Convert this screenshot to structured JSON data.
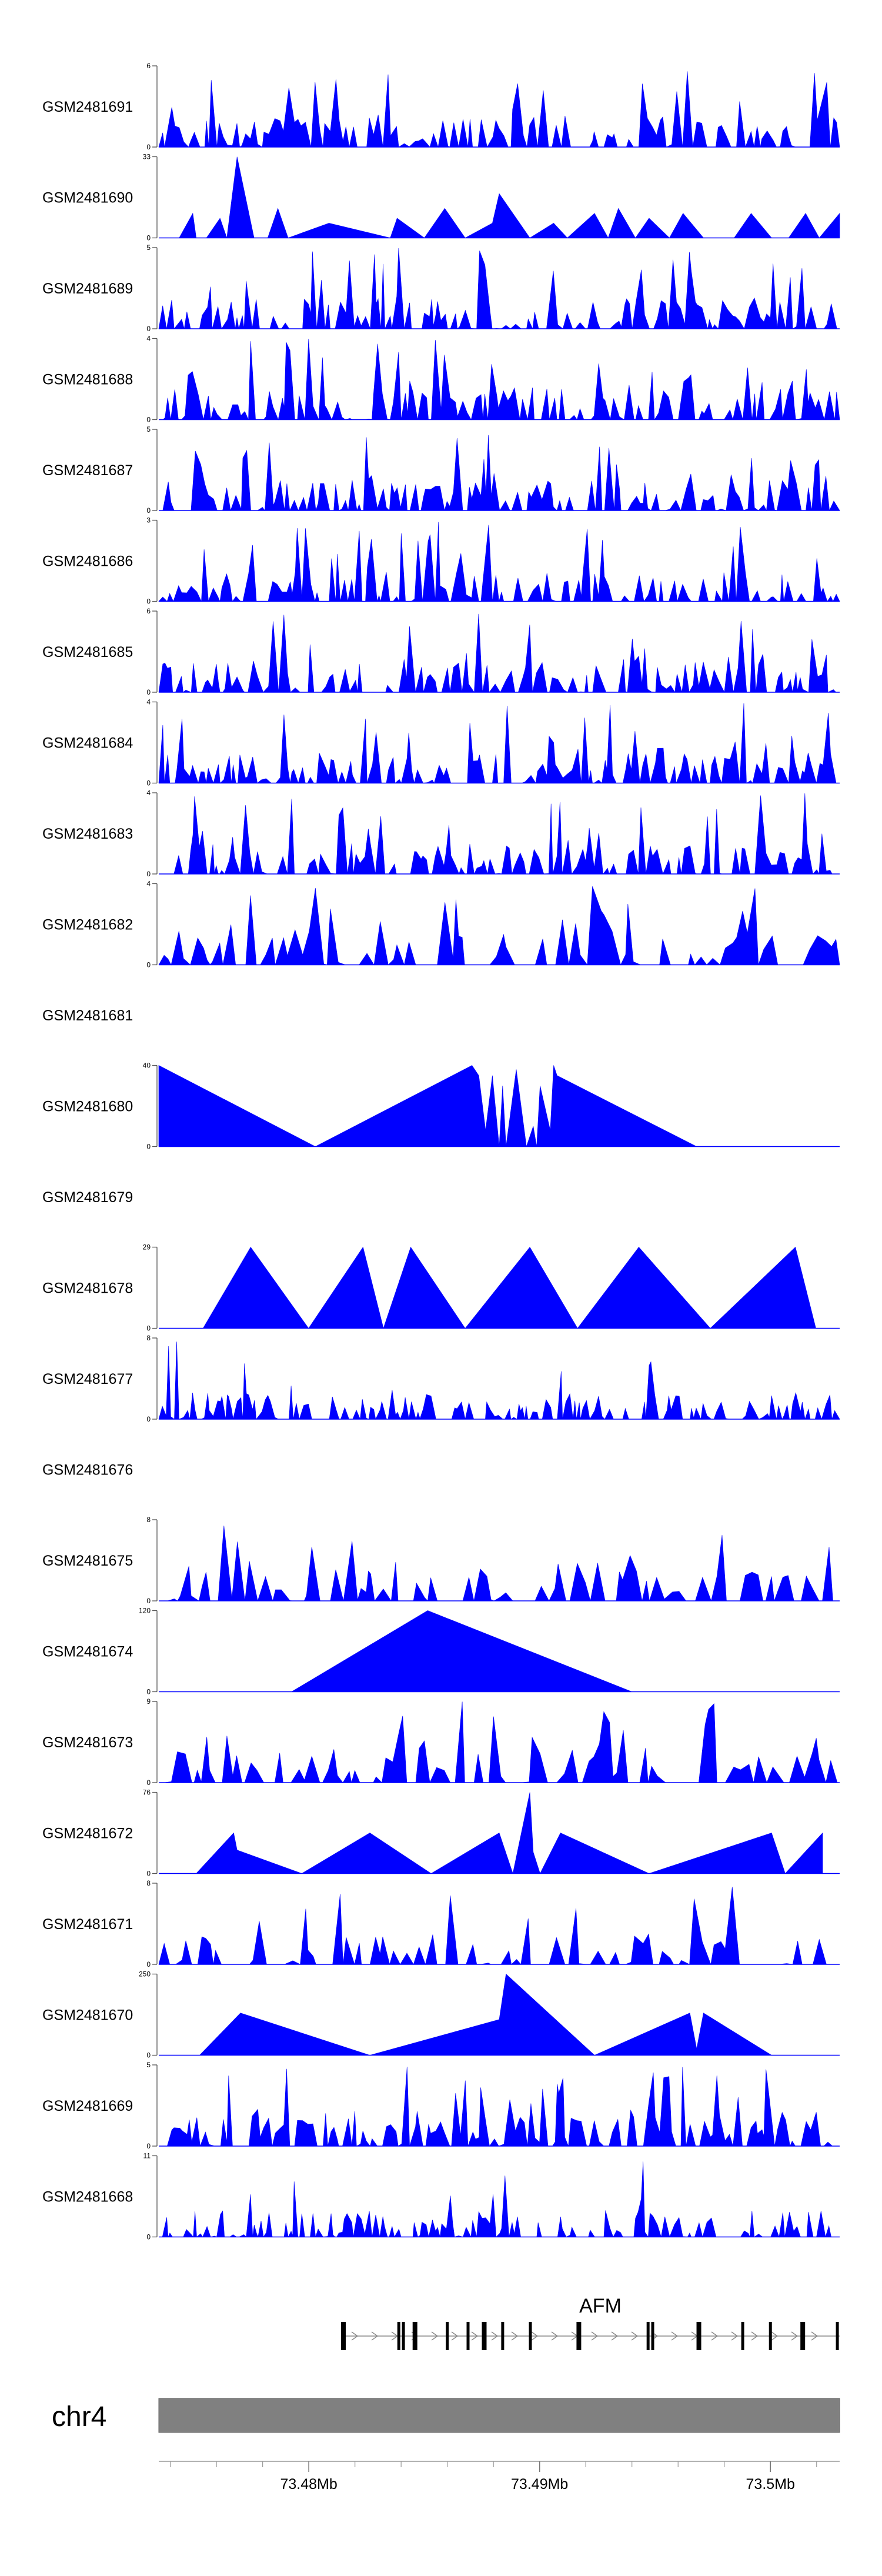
{
  "chart_data": {
    "type": "area",
    "title": "",
    "xlabel": "",
    "ylabel": "",
    "fill_color": "#0000ff",
    "chromosome": "chr4",
    "chromosome_color": "#808080",
    "x_range_mb": [
      73.4735,
      73.503
    ],
    "x_ticks": [
      {
        "value": 73.48,
        "label": "73.48Mb"
      },
      {
        "value": 73.49,
        "label": "73.49Mb"
      },
      {
        "value": 73.5,
        "label": "73.5Mb"
      }
    ],
    "gene": {
      "name": "AFM",
      "start_mb": 73.4815,
      "end_mb": 73.503,
      "exons_mb": [
        73.4815,
        73.4839,
        73.4841,
        73.4846,
        73.486,
        73.4869,
        73.4876,
        73.4884,
        73.4896,
        73.4917,
        73.4947,
        73.4949,
        73.4969,
        73.4988,
        73.5,
        73.5014,
        73.5029
      ]
    },
    "tracks": [
      {
        "name": "GSM2481691",
        "ymax": 6,
        "has_data": true,
        "seed": 11,
        "style": "dense"
      },
      {
        "name": "GSM2481690",
        "ymax": 33,
        "has_data": true,
        "style": "points",
        "x": [
          0.0,
          0.03,
          0.05,
          0.055,
          0.06,
          0.07,
          0.09,
          0.1,
          0.115,
          0.14,
          0.16,
          0.175,
          0.19,
          0.25,
          0.34,
          0.35,
          0.39,
          0.42,
          0.45,
          0.49,
          0.5,
          0.545,
          0.58,
          0.6,
          0.64,
          0.66,
          0.675,
          0.7,
          0.72,
          0.75,
          0.77,
          0.8,
          0.845,
          0.87,
          0.9,
          0.925,
          0.95,
          0.97,
          1.0
        ],
        "y": [
          0,
          0,
          10,
          0,
          0,
          0,
          8,
          0,
          33,
          0,
          0,
          12,
          0,
          6,
          0,
          8,
          0,
          12,
          0,
          6,
          18,
          0,
          6,
          0,
          10,
          0,
          12,
          0,
          8,
          0,
          10,
          0,
          0,
          10,
          0,
          0,
          10,
          0,
          10
        ]
      },
      {
        "name": "GSM2481689",
        "ymax": 5,
        "has_data": true,
        "seed": 23,
        "style": "dense"
      },
      {
        "name": "GSM2481688",
        "ymax": 4,
        "has_data": true,
        "seed": 37,
        "style": "dense"
      },
      {
        "name": "GSM2481687",
        "ymax": 5,
        "has_data": true,
        "seed": 41,
        "style": "dense"
      },
      {
        "name": "GSM2481686",
        "ymax": 3,
        "has_data": true,
        "seed": 53,
        "style": "dense"
      },
      {
        "name": "GSM2481685",
        "ymax": 6,
        "has_data": true,
        "seed": 67,
        "style": "dense"
      },
      {
        "name": "GSM2481684",
        "ymax": 4,
        "has_data": true,
        "seed": 79,
        "style": "dense"
      },
      {
        "name": "GSM2481683",
        "ymax": 4,
        "has_data": true,
        "seed": 83,
        "style": "dense"
      },
      {
        "name": "GSM2481682",
        "ymax": 4,
        "has_data": true,
        "seed": 97,
        "style": "medium"
      },
      {
        "name": "GSM2481681",
        "ymax": null,
        "has_data": false
      },
      {
        "name": "GSM2481680",
        "ymax": 40,
        "has_data": true,
        "style": "points",
        "x": [
          0.0,
          0.23,
          0.46,
          0.47,
          0.48,
          0.49,
          0.5,
          0.505,
          0.51,
          0.525,
          0.54,
          0.55,
          0.555,
          0.56,
          0.575,
          0.58,
          0.585,
          0.79
        ],
        "y": [
          40,
          0,
          40,
          35,
          8,
          35,
          0,
          30,
          0,
          38,
          0,
          10,
          0,
          30,
          8,
          40,
          35,
          0
        ]
      },
      {
        "name": "GSM2481679",
        "ymax": null,
        "has_data": false
      },
      {
        "name": "GSM2481678",
        "ymax": 29,
        "has_data": true,
        "style": "points",
        "x": [
          0.065,
          0.135,
          0.22,
          0.3,
          0.33,
          0.37,
          0.45,
          0.545,
          0.615,
          0.705,
          0.81,
          0.935,
          0.965
        ],
        "y": [
          0,
          29,
          0,
          29,
          0,
          29,
          0,
          29,
          0,
          29,
          0,
          29,
          0
        ]
      },
      {
        "name": "GSM2481677",
        "ymax": 8,
        "has_data": true,
        "seed": 109,
        "style": "sparse"
      },
      {
        "name": "GSM2481676",
        "ymax": null,
        "has_data": false
      },
      {
        "name": "GSM2481675",
        "ymax": 8,
        "has_data": true,
        "seed": 113,
        "style": "medium"
      },
      {
        "name": "GSM2481674",
        "ymax": 120,
        "has_data": true,
        "style": "points",
        "x": [
          0.195,
          0.395,
          0.695
        ],
        "y": [
          0,
          120,
          0
        ]
      },
      {
        "name": "GSM2481673",
        "ymax": 9,
        "has_data": true,
        "seed": 127,
        "style": "medium"
      },
      {
        "name": "GSM2481672",
        "ymax": 76,
        "has_data": true,
        "style": "points",
        "x": [
          0.055,
          0.11,
          0.115,
          0.21,
          0.31,
          0.4,
          0.5,
          0.52,
          0.545,
          0.55,
          0.56,
          0.59,
          0.72,
          0.9,
          0.92,
          0.975
        ],
        "y": [
          0,
          38,
          22,
          0,
          38,
          0,
          38,
          0,
          76,
          20,
          0,
          38,
          0,
          38,
          0,
          38
        ]
      },
      {
        "name": "GSM2481671",
        "ymax": 8,
        "has_data": true,
        "seed": 131,
        "style": "medium"
      },
      {
        "name": "GSM2481670",
        "ymax": 250,
        "has_data": true,
        "style": "points",
        "x": [
          0.06,
          0.12,
          0.31,
          0.5,
          0.51,
          0.64,
          0.78,
          0.79,
          0.8,
          0.9
        ],
        "y": [
          0,
          130,
          0,
          110,
          250,
          0,
          130,
          20,
          130,
          0
        ]
      },
      {
        "name": "GSM2481669",
        "ymax": 5,
        "has_data": true,
        "seed": 137,
        "style": "dense"
      },
      {
        "name": "GSM2481668",
        "ymax": 11,
        "has_data": true,
        "seed": 149,
        "style": "sparse"
      }
    ]
  }
}
